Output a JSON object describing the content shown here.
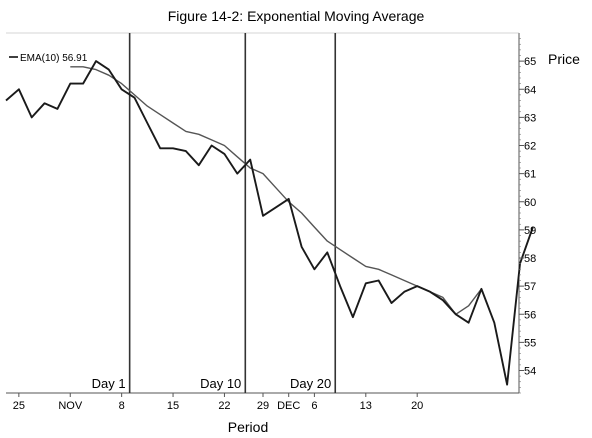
{
  "chart_data": {
    "type": "line",
    "title": "Figure 14-2: Exponential Moving Average",
    "xlabel": "Period",
    "ylabel": "Price",
    "ylim": [
      53.2,
      66
    ],
    "y_ticks": [
      54,
      55,
      56,
      57,
      58,
      59,
      60,
      61,
      62,
      63,
      64,
      65
    ],
    "x_tick_labels": [
      "25",
      "NOV",
      "8",
      "15",
      "22",
      "29",
      "DEC",
      "6",
      "13",
      "20"
    ],
    "x_tick_index": [
      1,
      5,
      9,
      13,
      17,
      20,
      22,
      24,
      28,
      32
    ],
    "vertical_markers": [
      {
        "label": "Day 1",
        "index": 9
      },
      {
        "label": "Day 10",
        "index": 18
      },
      {
        "label": "Day 20",
        "index": 25
      }
    ],
    "legend": "EMA(10) 56.91",
    "grid": false,
    "series": [
      {
        "name": "EMA(10)",
        "values": [
          null,
          null,
          null,
          null,
          null,
          64.8,
          64.8,
          64.7,
          64.5,
          64.2,
          63.8,
          63.4,
          63.1,
          62.8,
          62.5,
          62.4,
          62.2,
          62.0,
          61.6,
          61.2,
          61.0,
          60.5,
          60.0,
          59.6,
          59.1,
          58.6,
          58.3,
          58.0,
          57.7,
          57.6,
          57.4,
          57.2,
          57.0,
          56.8,
          56.6,
          56.0,
          56.3,
          56.9
        ]
      },
      {
        "values": [
          63.6,
          64.0,
          63.0,
          63.5,
          63.3,
          64.2,
          64.2,
          65.0,
          64.7,
          64.0,
          63.7,
          62.8,
          61.9,
          61.9,
          61.8,
          61.3,
          62.0,
          61.7,
          61.0,
          61.5,
          59.5,
          59.8,
          60.1,
          58.4,
          57.6,
          58.2,
          57.0,
          55.9,
          57.1,
          57.2,
          56.4,
          56.8,
          57.0,
          56.8,
          56.5,
          56.0,
          55.7,
          56.9,
          55.7,
          53.5,
          57.8,
          59.1
        ]
      }
    ]
  }
}
